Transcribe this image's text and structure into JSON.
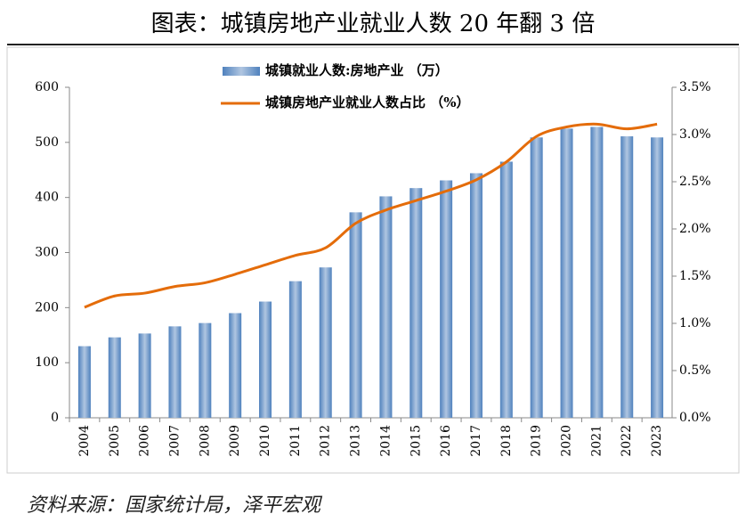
{
  "title": "图表：城镇房地产业就业人数 20 年翻 3 倍",
  "source": "资料来源：国家统计局，泽平宏观",
  "chart_data": {
    "type": "bar",
    "categories": [
      "2004",
      "2005",
      "2006",
      "2007",
      "2008",
      "2009",
      "2010",
      "2011",
      "2012",
      "2013",
      "2014",
      "2015",
      "2016",
      "2017",
      "2018",
      "2019",
      "2020",
      "2021",
      "2022",
      "2023"
    ],
    "series": [
      {
        "name": "城镇就业人数:房地产业 （万）",
        "type": "bar",
        "color": "#4f81bd",
        "values": [
          130,
          146,
          153,
          166,
          172,
          190,
          211,
          248,
          273,
          373,
          402,
          417,
          431,
          444,
          465,
          509,
          525,
          528,
          511,
          509
        ]
      },
      {
        "name": "城镇房地产业就业人数占比 （%）",
        "type": "line",
        "axis": "y2",
        "color": "#e46c0a",
        "values": [
          1.17,
          1.29,
          1.32,
          1.39,
          1.43,
          1.52,
          1.62,
          1.72,
          1.8,
          2.06,
          2.2,
          2.3,
          2.4,
          2.52,
          2.71,
          2.98,
          3.08,
          3.11,
          3.06,
          3.11
        ]
      }
    ],
    "ylim": [
      0,
      600
    ],
    "yticks": [
      0,
      100,
      200,
      300,
      400,
      500,
      600
    ],
    "y2lim": [
      0,
      3.5
    ],
    "y2ticks": [
      {
        "value": 0,
        "label": "0.0%"
      },
      {
        "value": 0.5,
        "label": "0.5%"
      },
      {
        "value": 1,
        "label": "1.0%"
      },
      {
        "value": 1.5,
        "label": "1.5%"
      },
      {
        "value": 2,
        "label": "2.0%"
      },
      {
        "value": 2.5,
        "label": "2.5%"
      },
      {
        "value": 3,
        "label": "3.0%"
      },
      {
        "value": 3.5,
        "label": "3.5%"
      }
    ],
    "grid": false
  }
}
